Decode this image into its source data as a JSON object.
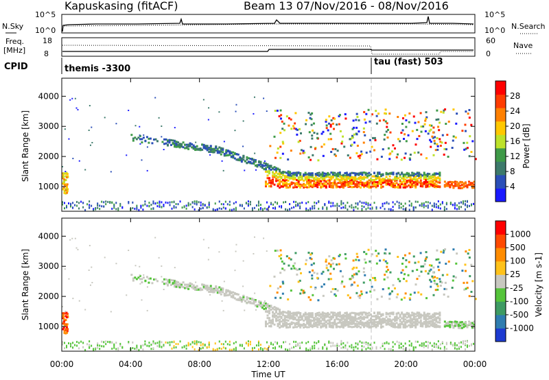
{
  "header": {
    "station": "Kapuskasing (fitACF)",
    "beam_date": "Beam 13  07/Nov/2016 - 08/Nov/2016"
  },
  "nsky_panel": {
    "left_label": "N.Sky",
    "left_ticks": [
      "10^5",
      "10^0"
    ],
    "right_ticks": [
      "10^5",
      "10^0"
    ],
    "right_label": "N.Search"
  },
  "freq_panel": {
    "left_label_1": "Freq.",
    "left_label_2": "[MHz]",
    "left_ticks": [
      "18",
      "8"
    ],
    "right_ticks": [
      "60",
      "0"
    ],
    "right_label": "Nave"
  },
  "cpid_panel": {
    "label": "CPID",
    "segments": [
      {
        "text": "themis -3300",
        "start_hour": 0
      },
      {
        "text": "tau (fast) 503",
        "start_hour": 18
      }
    ]
  },
  "chart_data": [
    {
      "type": "heatmap",
      "name": "power",
      "ylabel": "Slant Range [km]",
      "ytick_labels": [
        "1000",
        "2000",
        "3000",
        "4000"
      ],
      "yticks": [
        1000,
        2000,
        3000,
        4000
      ],
      "ylim": [
        180,
        4600
      ],
      "xlim": [
        0,
        24
      ],
      "colorbar": {
        "label": "Power [dB]",
        "ticks": [
          "4",
          "8",
          "12",
          "16",
          "20",
          "24",
          "28"
        ],
        "range": [
          0,
          32
        ],
        "colors": [
          "#1a1aff",
          "#2b4fb8",
          "#3d7a6b",
          "#3f9a48",
          "#bde22a",
          "#ffc800",
          "#ff8000",
          "#ff3c00",
          "#ff0000"
        ]
      },
      "features": [
        {
          "label": "E-region ground scatter",
          "x": [
            0,
            24
          ],
          "y": [
            250,
            450
          ]
        },
        {
          "label": "near-range echoes",
          "x": [
            0,
            0.3
          ],
          "y": [
            800,
            1500
          ]
        },
        {
          "label": "ionospheric arc",
          "x": [
            4,
            12
          ],
          "y": [
            1800,
            2900
          ]
        },
        {
          "label": "strong ground scatter",
          "x": [
            12,
            22
          ],
          "y": [
            900,
            1800
          ]
        },
        {
          "label": "late return",
          "x": [
            22,
            24
          ],
          "y": [
            1000,
            1200
          ]
        }
      ]
    },
    {
      "type": "heatmap",
      "name": "velocity",
      "ylabel": "Slant Range [km]",
      "ytick_labels": [
        "1000",
        "2000",
        "3000",
        "4000"
      ],
      "yticks": [
        1000,
        2000,
        3000,
        4000
      ],
      "ylim": [
        180,
        4600
      ],
      "xlim": [
        0,
        24
      ],
      "xlabel": "Time UT",
      "xtick_labels": [
        "00:00",
        "04:00",
        "08:00",
        "12:00",
        "16:00",
        "20:00",
        "00:00"
      ],
      "colorbar": {
        "label": "Velocity  [m s-1]",
        "ticks": [
          "1000",
          "500",
          "100",
          "25",
          "-25",
          "-100",
          "-500",
          "-1000"
        ],
        "colors": [
          "#1d3bd1",
          "#2f7db0",
          "#3e9b63",
          "#55c43a",
          "#c8c8c0",
          "#ffc21a",
          "#ff8c00",
          "#ff4a00",
          "#ff0000"
        ]
      }
    }
  ]
}
